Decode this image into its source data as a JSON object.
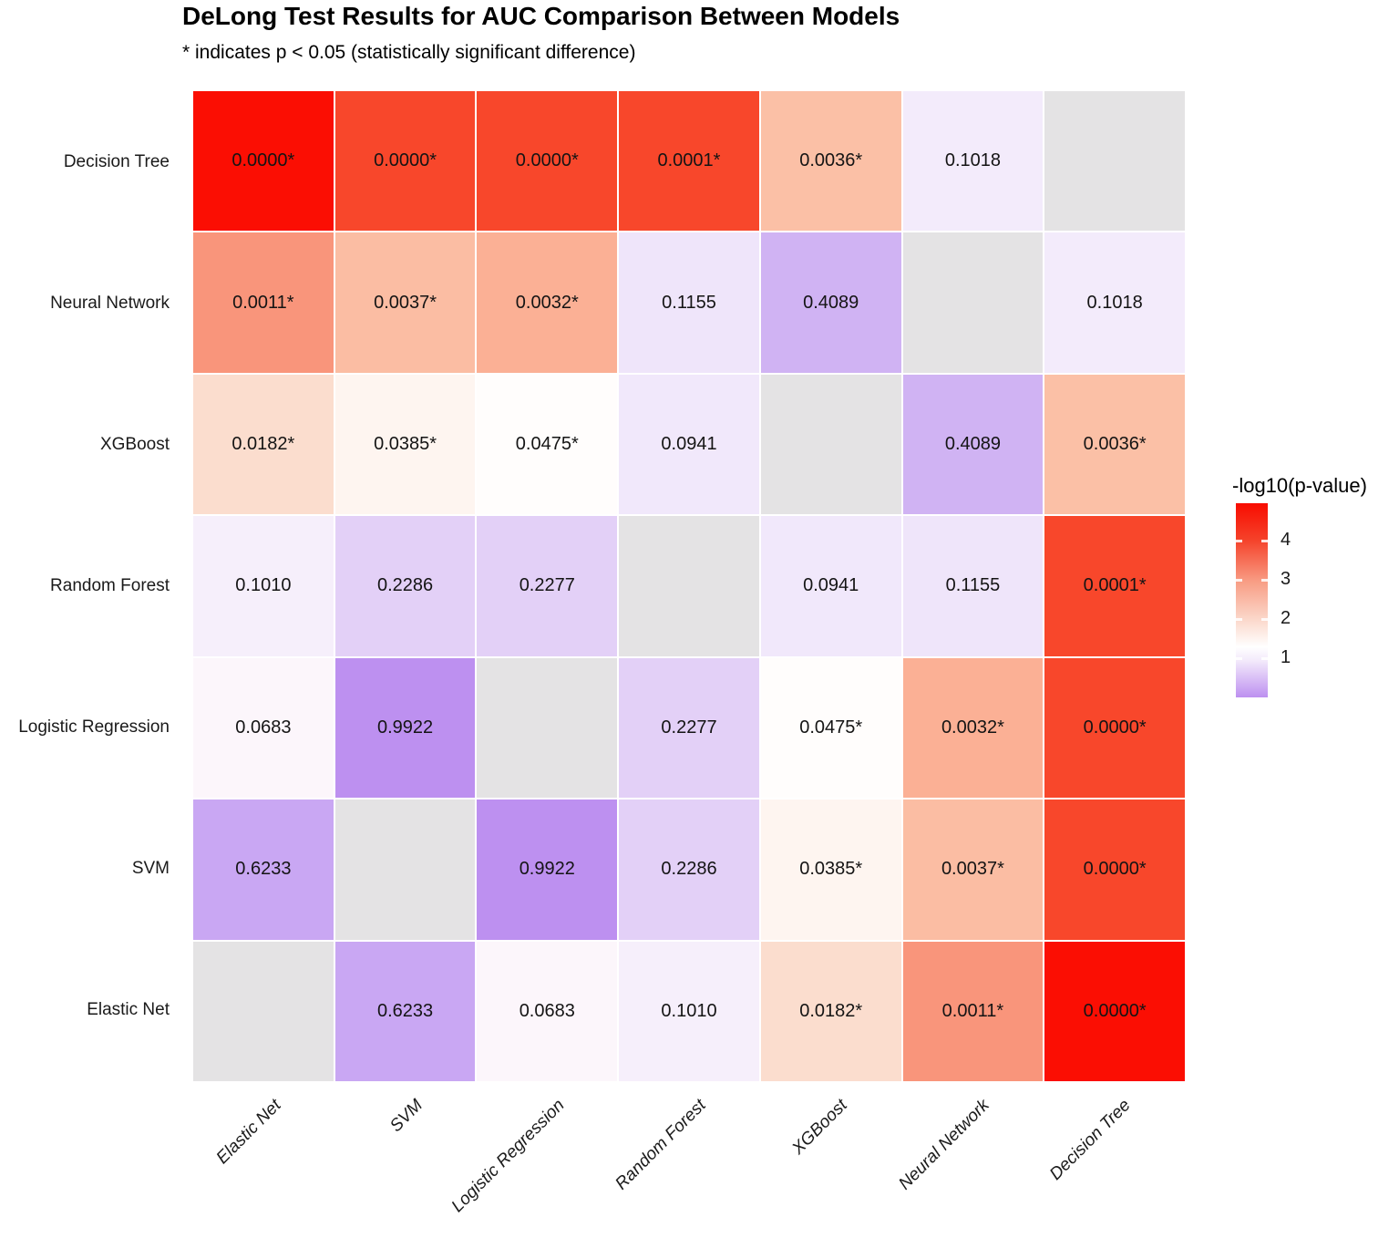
{
  "title": "DeLong Test Results for AUC Comparison Between Models",
  "subtitle": "* indicates p < 0.05 (statistically significant difference)",
  "chart_data": {
    "type": "heatmap",
    "x_categories": [
      "Elastic Net",
      "SVM",
      "Logistic Regression",
      "Random Forest",
      "XGBoost",
      "Neural Network",
      "Decision Tree"
    ],
    "y_categories": [
      "Decision Tree",
      "Neural Network",
      "XGBoost",
      "Random Forest",
      "Logistic Regression",
      "SVM",
      "Elastic Net"
    ],
    "diagonal_color": "#E4E3E4",
    "rows": [
      {
        "model": "Decision Tree",
        "cells": [
          {
            "label": "0.0000*",
            "color": "#FB0E03"
          },
          {
            "label": "0.0000*",
            "color": "#F8472B"
          },
          {
            "label": "0.0000*",
            "color": "#F8472B"
          },
          {
            "label": "0.0001*",
            "color": "#F8472B"
          },
          {
            "label": "0.0036*",
            "color": "#FBC0A6"
          },
          {
            "label": "0.1018",
            "color": "#F3EBFB"
          },
          {
            "label": "",
            "color": "#E4E3E4"
          }
        ]
      },
      {
        "model": "Neural Network",
        "cells": [
          {
            "label": "0.0011*",
            "color": "#F9957B"
          },
          {
            "label": "0.0037*",
            "color": "#FBBDA3"
          },
          {
            "label": "0.0032*",
            "color": "#FBB095"
          },
          {
            "label": "0.1155",
            "color": "#EFE5FA"
          },
          {
            "label": "0.4089",
            "color": "#D0B3F3"
          },
          {
            "label": "",
            "color": "#E4E3E4"
          },
          {
            "label": "0.1018",
            "color": "#F3EBFB"
          }
        ]
      },
      {
        "model": "XGBoost",
        "cells": [
          {
            "label": "0.0182*",
            "color": "#FBDDCE"
          },
          {
            "label": "0.0385*",
            "color": "#FEF5F0"
          },
          {
            "label": "0.0475*",
            "color": "#FFFDFC"
          },
          {
            "label": "0.0941",
            "color": "#F1E8FB"
          },
          {
            "label": "",
            "color": "#E4E3E4"
          },
          {
            "label": "0.4089",
            "color": "#D0B3F3"
          },
          {
            "label": "0.0036*",
            "color": "#FBC0A6"
          }
        ]
      },
      {
        "model": "Random Forest",
        "cells": [
          {
            "label": "0.1010",
            "color": "#F6EFFB"
          },
          {
            "label": "0.2286",
            "color": "#E3D0F7"
          },
          {
            "label": "0.2277",
            "color": "#E3D0F7"
          },
          {
            "label": "",
            "color": "#E4E3E4"
          },
          {
            "label": "0.0941",
            "color": "#F1E8FB"
          },
          {
            "label": "0.1155",
            "color": "#EFE5FA"
          },
          {
            "label": "0.0001*",
            "color": "#F8472B"
          }
        ]
      },
      {
        "model": "Logistic Regression",
        "cells": [
          {
            "label": "0.0683",
            "color": "#FCF6FB"
          },
          {
            "label": "0.9922",
            "color": "#BD90F0"
          },
          {
            "label": "",
            "color": "#E4E3E4"
          },
          {
            "label": "0.2277",
            "color": "#E3D0F7"
          },
          {
            "label": "0.0475*",
            "color": "#FFFDFC"
          },
          {
            "label": "0.0032*",
            "color": "#FBB095"
          },
          {
            "label": "0.0000*",
            "color": "#F8472B"
          }
        ]
      },
      {
        "model": "SVM",
        "cells": [
          {
            "label": "0.6233",
            "color": "#C9A7F3"
          },
          {
            "label": "",
            "color": "#E4E3E4"
          },
          {
            "label": "0.9922",
            "color": "#BD90F0"
          },
          {
            "label": "0.2286",
            "color": "#E3D0F7"
          },
          {
            "label": "0.0385*",
            "color": "#FEF5F0"
          },
          {
            "label": "0.0037*",
            "color": "#FBBDA3"
          },
          {
            "label": "0.0000*",
            "color": "#F8472B"
          }
        ]
      },
      {
        "model": "Elastic Net",
        "cells": [
          {
            "label": "",
            "color": "#E4E3E4"
          },
          {
            "label": "0.6233",
            "color": "#C9A7F3"
          },
          {
            "label": "0.0683",
            "color": "#FCF6FB"
          },
          {
            "label": "0.1010",
            "color": "#F6EFFB"
          },
          {
            "label": "0.0182*",
            "color": "#FBDDCE"
          },
          {
            "label": "0.0011*",
            "color": "#F9957B"
          },
          {
            "label": "0.0000*",
            "color": "#FB0E03"
          }
        ]
      }
    ],
    "legend": {
      "title": "-log10(p-value)",
      "ticks": [
        "4",
        "3",
        "2",
        "1"
      ],
      "scale_max": 4.95,
      "gradient": [
        {
          "pos": 0,
          "color": "#F80C00"
        },
        {
          "pos": 19,
          "color": "#F5422A"
        },
        {
          "pos": 40,
          "color": "#F89C83"
        },
        {
          "pos": 60,
          "color": "#FBD8CB"
        },
        {
          "pos": 74,
          "color": "#FFFFFF"
        },
        {
          "pos": 81,
          "color": "#F3EAFB"
        },
        {
          "pos": 100,
          "color": "#BD90F0"
        }
      ]
    }
  }
}
